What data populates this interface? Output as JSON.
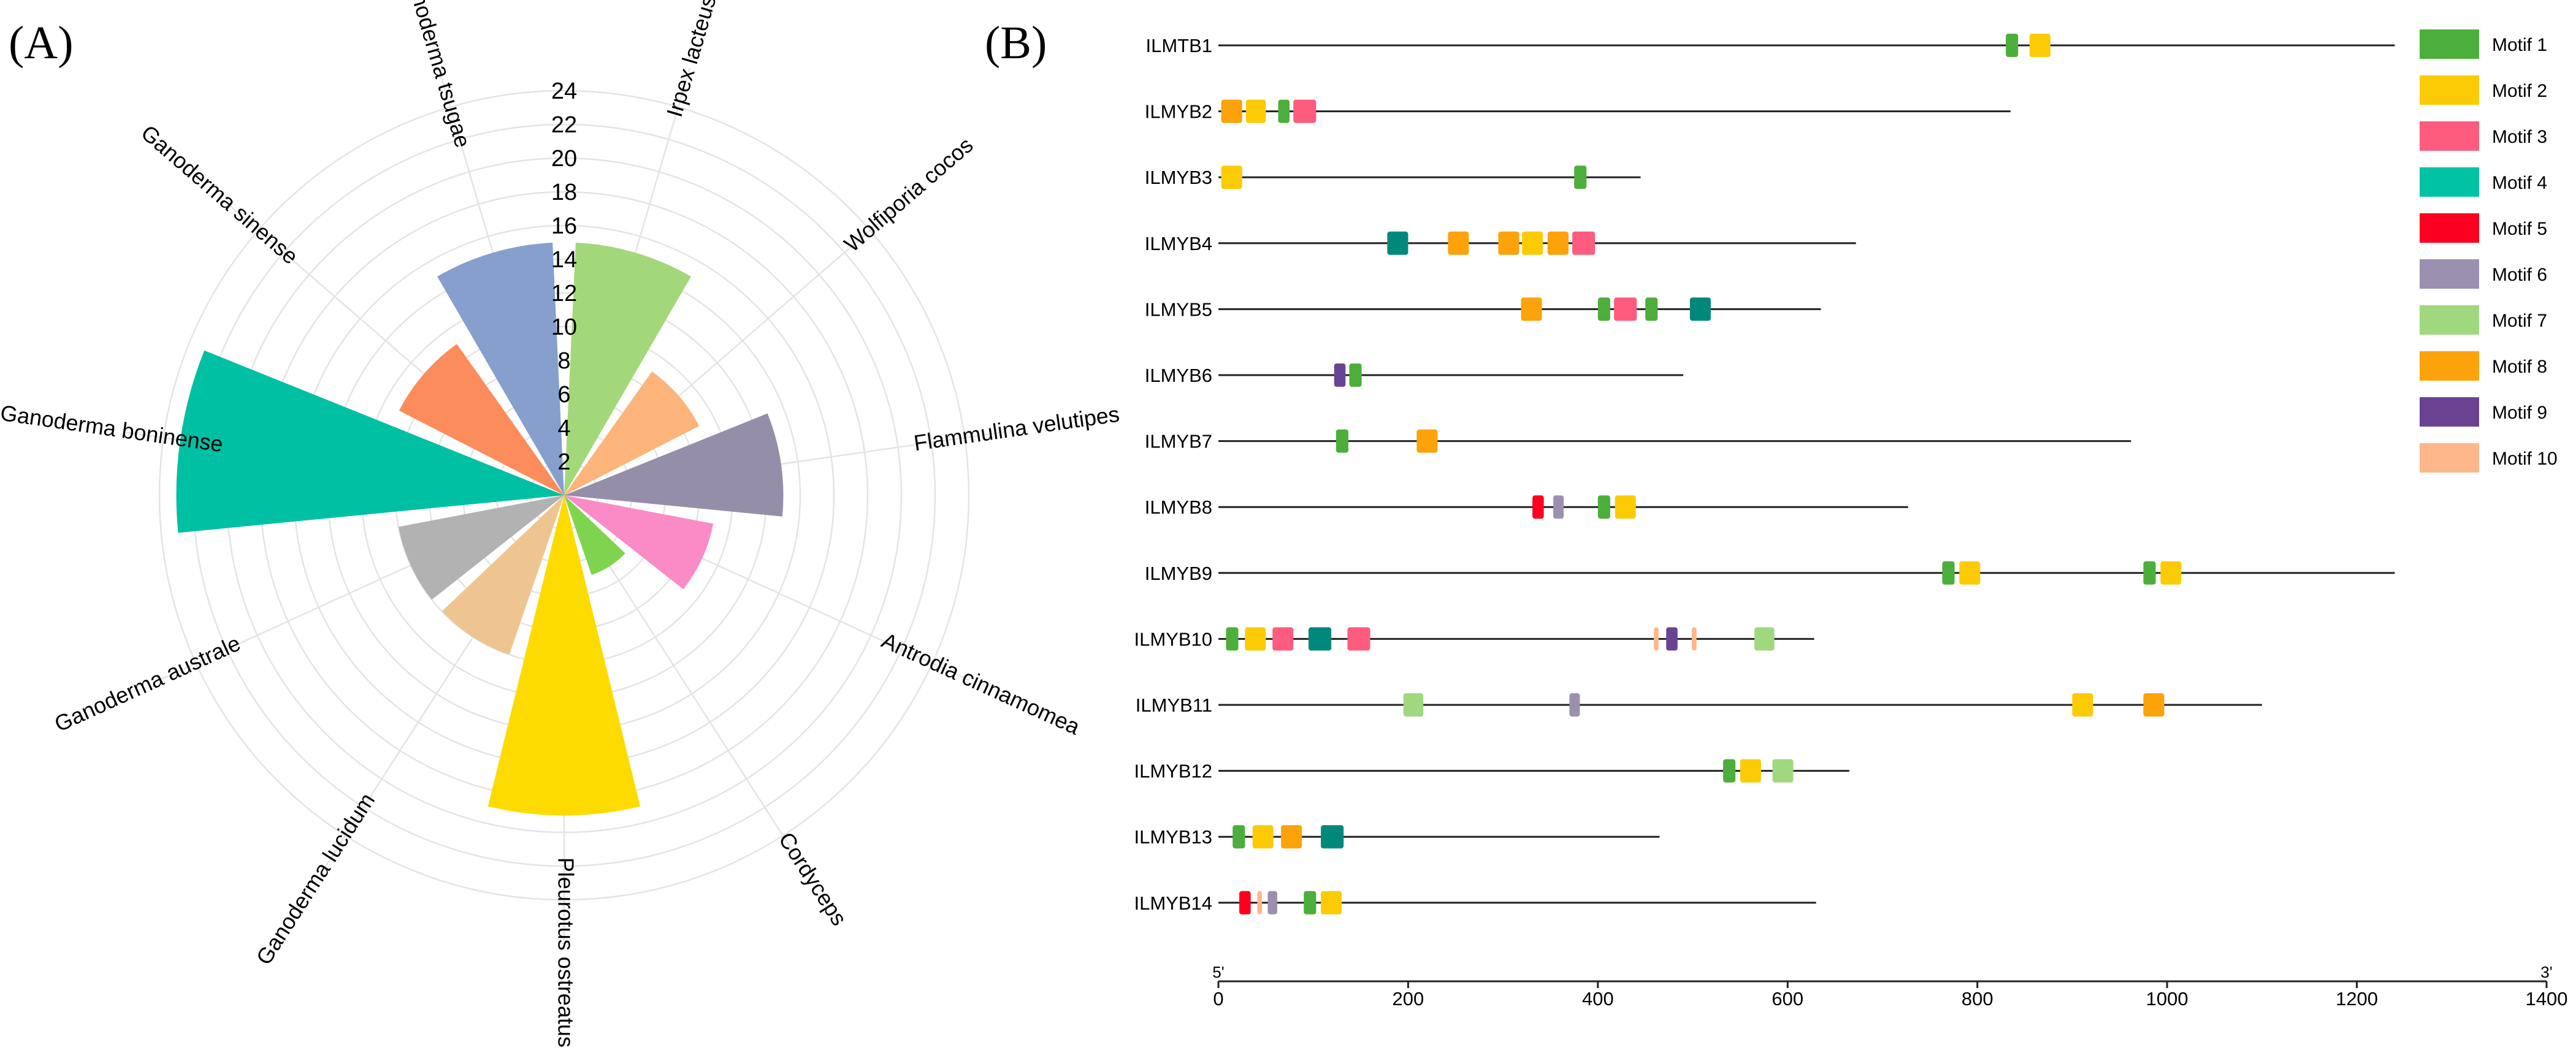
{
  "figure": {
    "panel_a_label": "(A)",
    "panel_b_label": "(B)"
  },
  "chart_data": [
    {
      "type": "polar-bar",
      "title": "",
      "radial_axis": {
        "ticks": [
          2,
          4,
          6,
          8,
          10,
          12,
          14,
          16,
          18,
          20,
          22,
          24
        ],
        "range": [
          0,
          24
        ]
      },
      "categories": [
        "Irpex lacteus",
        "Wolfiporia cocos",
        "Flammulina velutipes",
        "Antrodia cinnamomea",
        "Cordyceps",
        "Pleurotus ostreatus",
        "Ganoderma lucidum",
        "Ganoderma australe",
        "Ganoderma boninense",
        "Ganoderma sinense",
        "Ganoderma tsugae"
      ],
      "values": [
        15,
        9,
        13,
        9,
        5,
        19,
        10,
        10,
        23,
        11,
        15
      ],
      "colors": [
        "#a3d87a",
        "#fcb47b",
        "#948ea9",
        "#fb8bc6",
        "#7ed44e",
        "#fddb00",
        "#eec591",
        "#b2b2b2",
        "#00c0a3",
        "#fc8c5c",
        "#869fcc"
      ]
    },
    {
      "type": "motif-map",
      "x_axis": {
        "range": [
          0,
          1400
        ],
        "ticks": [
          0,
          200,
          400,
          600,
          800,
          1000,
          1200,
          1400
        ],
        "start_label": "5'",
        "end_label": "3'"
      },
      "legend": [
        {
          "name": "Motif 1",
          "color": "#4caf3c"
        },
        {
          "name": "Motif 2",
          "color": "#fccb06"
        },
        {
          "name": "Motif 3",
          "color": "#fd5c7e"
        },
        {
          "name": "Motif 4",
          "color": "#00c3a3"
        },
        {
          "name": "Motif 5",
          "color": "#fb0020"
        },
        {
          "name": "Motif 6",
          "color": "#9c90b0"
        },
        {
          "name": "Motif 7",
          "color": "#a0d880"
        },
        {
          "name": "Motif 8",
          "color": "#fca20a"
        },
        {
          "name": "Motif 9",
          "color": "#6a4493"
        },
        {
          "name": "Motif 10",
          "color": "#fdb78a"
        }
      ],
      "genes": [
        {
          "name": "ILMTB1",
          "length": 1240,
          "motifs": [
            {
              "start": 830,
              "end": 843,
              "color": "#4caf3c"
            },
            {
              "start": 855,
              "end": 877,
              "color": "#fccb06"
            }
          ]
        },
        {
          "name": "ILMYB2",
          "length": 835,
          "motifs": [
            {
              "start": 3,
              "end": 25,
              "color": "#fca20a"
            },
            {
              "start": 29,
              "end": 50,
              "color": "#fccb06"
            },
            {
              "start": 63,
              "end": 75,
              "color": "#4caf3c"
            },
            {
              "start": 79,
              "end": 103,
              "color": "#fd5c7e"
            }
          ]
        },
        {
          "name": "ILMYB3",
          "length": 445,
          "motifs": [
            {
              "start": 3,
              "end": 25,
              "color": "#fccb06"
            },
            {
              "start": 375,
              "end": 388,
              "color": "#4caf3c"
            }
          ]
        },
        {
          "name": "ILMYB4",
          "length": 672,
          "motifs": [
            {
              "start": 178,
              "end": 200,
              "color": "#00897b"
            },
            {
              "start": 242,
              "end": 264,
              "color": "#fca20a"
            },
            {
              "start": 295,
              "end": 317,
              "color": "#fca20a"
            },
            {
              "start": 320,
              "end": 342,
              "color": "#fccb06"
            },
            {
              "start": 347,
              "end": 369,
              "color": "#fca20a"
            },
            {
              "start": 373,
              "end": 397,
              "color": "#fd5c7e"
            }
          ]
        },
        {
          "name": "ILMYB5",
          "length": 635,
          "motifs": [
            {
              "start": 319,
              "end": 341,
              "color": "#fca20a"
            },
            {
              "start": 400,
              "end": 413,
              "color": "#4caf3c"
            },
            {
              "start": 417,
              "end": 441,
              "color": "#fd5c7e"
            },
            {
              "start": 450,
              "end": 463,
              "color": "#4caf3c"
            },
            {
              "start": 497,
              "end": 519,
              "color": "#00897b"
            }
          ]
        },
        {
          "name": "ILMYB6",
          "length": 490,
          "motifs": [
            {
              "start": 122,
              "end": 134,
              "color": "#6a4493"
            },
            {
              "start": 138,
              "end": 151,
              "color": "#4caf3c"
            }
          ]
        },
        {
          "name": "ILMYB7",
          "length": 962,
          "motifs": [
            {
              "start": 124,
              "end": 137,
              "color": "#4caf3c"
            },
            {
              "start": 209,
              "end": 231,
              "color": "#fca20a"
            }
          ]
        },
        {
          "name": "ILMYB8",
          "length": 727,
          "motifs": [
            {
              "start": 331,
              "end": 343,
              "color": "#fb0020"
            },
            {
              "start": 353,
              "end": 364,
              "color": "#9c90b0"
            },
            {
              "start": 400,
              "end": 413,
              "color": "#4caf3c"
            },
            {
              "start": 418,
              "end": 440,
              "color": "#fccb06"
            }
          ]
        },
        {
          "name": "ILMYB9",
          "length": 1240,
          "motifs": [
            {
              "start": 763,
              "end": 776,
              "color": "#4caf3c"
            },
            {
              "start": 781,
              "end": 803,
              "color": "#fccb06"
            },
            {
              "start": 975,
              "end": 988,
              "color": "#4caf3c"
            },
            {
              "start": 993,
              "end": 1015,
              "color": "#fccb06"
            }
          ]
        },
        {
          "name": "ILMYB10",
          "length": 628,
          "motifs": [
            {
              "start": 8,
              "end": 21,
              "color": "#4caf3c"
            },
            {
              "start": 28,
              "end": 50,
              "color": "#fccb06"
            },
            {
              "start": 57,
              "end": 79,
              "color": "#fd5c7e"
            },
            {
              "start": 95,
              "end": 119,
              "color": "#00897b"
            },
            {
              "start": 136,
              "end": 160,
              "color": "#fd5c7e"
            },
            {
              "start": 459,
              "end": 464,
              "color": "#fdb78a"
            },
            {
              "start": 472,
              "end": 484,
              "color": "#6a4493"
            },
            {
              "start": 499,
              "end": 504,
              "color": "#fdb78a"
            },
            {
              "start": 565,
              "end": 586,
              "color": "#a0d880"
            }
          ]
        },
        {
          "name": "ILMYB11",
          "length": 1100,
          "motifs": [
            {
              "start": 195,
              "end": 216,
              "color": "#a0d880"
            },
            {
              "start": 370,
              "end": 381,
              "color": "#9c90b0"
            },
            {
              "start": 900,
              "end": 922,
              "color": "#fccb06"
            },
            {
              "start": 975,
              "end": 997,
              "color": "#fca20a"
            }
          ]
        },
        {
          "name": "ILMYB12",
          "length": 665,
          "motifs": [
            {
              "start": 532,
              "end": 545,
              "color": "#4caf3c"
            },
            {
              "start": 550,
              "end": 572,
              "color": "#fccb06"
            },
            {
              "start": 584,
              "end": 606,
              "color": "#a0d880"
            }
          ]
        },
        {
          "name": "ILMYB13",
          "length": 465,
          "motifs": [
            {
              "start": 15,
              "end": 28,
              "color": "#4caf3c"
            },
            {
              "start": 36,
              "end": 58,
              "color": "#fccb06"
            },
            {
              "start": 66,
              "end": 88,
              "color": "#fca20a"
            },
            {
              "start": 108,
              "end": 132,
              "color": "#00897b"
            }
          ]
        },
        {
          "name": "ILMYB14",
          "length": 630,
          "motifs": [
            {
              "start": 22,
              "end": 34,
              "color": "#fb0020"
            },
            {
              "start": 41,
              "end": 46,
              "color": "#fdb78a"
            },
            {
              "start": 52,
              "end": 62,
              "color": "#9c90b0"
            },
            {
              "start": 90,
              "end": 103,
              "color": "#4caf3c"
            },
            {
              "start": 108,
              "end": 130,
              "color": "#fccb06"
            }
          ]
        }
      ]
    }
  ]
}
